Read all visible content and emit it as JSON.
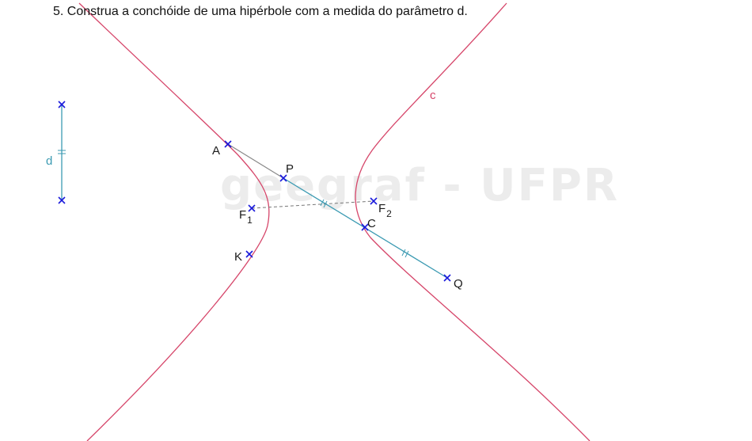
{
  "exercise": {
    "title": "5. Construa a conchóide de uma hipérbole com a medida do parâmetro d."
  },
  "watermark": "geegraf - UFPR",
  "colors": {
    "hyperbola": "#d6466a",
    "segment": "#3b9ab2",
    "point": "#1a1adb",
    "text": "#111111",
    "helper_line": "#777777"
  },
  "labels": {
    "A": "A",
    "P": "P",
    "C": "C",
    "Q": "Q",
    "K": "K",
    "F1_main": "F",
    "F1_sub": "1",
    "F2_main": "F",
    "F2_sub": "2",
    "d": "d",
    "c": "c"
  },
  "icons": {
    "point_marker": "x-cross-icon",
    "equal_length_marker": "double-tick-icon"
  }
}
